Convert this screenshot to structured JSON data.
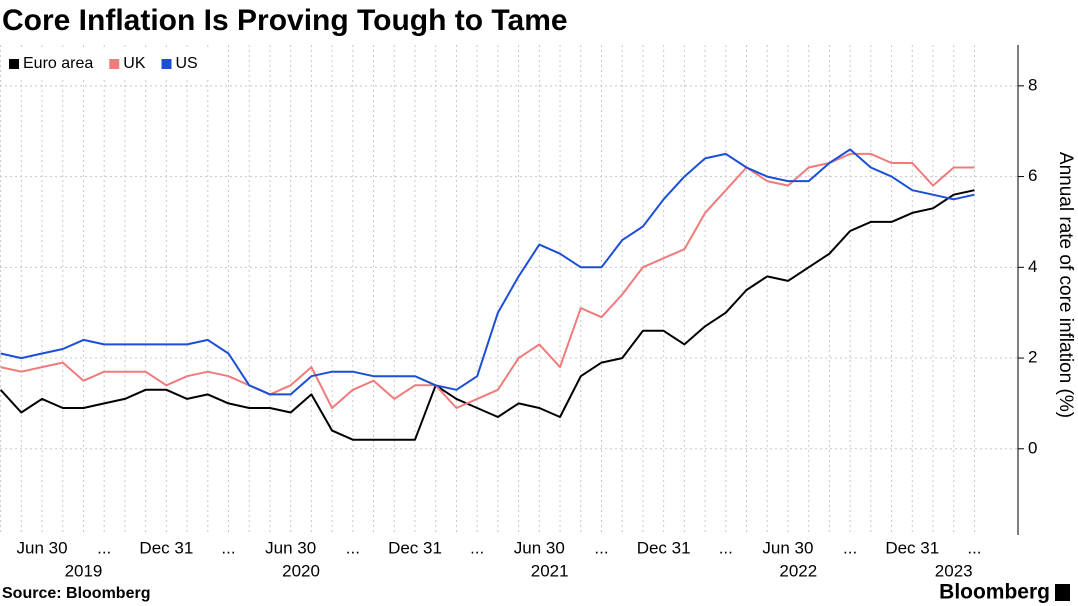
{
  "chart_data": {
    "type": "line",
    "title": "Core Inflation Is Proving Tough to Tame",
    "y_axis_label": "Annual rate of core inflation (%)",
    "source": "Source: Bloomberg",
    "brand": "Bloomberg",
    "x": [
      "2019-04",
      "2019-05",
      "2019-06",
      "2019-07",
      "2019-08",
      "2019-09",
      "2019-10",
      "2019-11",
      "2019-12",
      "2020-01",
      "2020-02",
      "2020-03",
      "2020-04",
      "2020-05",
      "2020-06",
      "2020-07",
      "2020-08",
      "2020-09",
      "2020-10",
      "2020-11",
      "2020-12",
      "2021-01",
      "2021-02",
      "2021-03",
      "2021-04",
      "2021-05",
      "2021-06",
      "2021-07",
      "2021-08",
      "2021-09",
      "2021-10",
      "2021-11",
      "2021-12",
      "2022-01",
      "2022-02",
      "2022-03",
      "2022-04",
      "2022-05",
      "2022-06",
      "2022-07",
      "2022-08",
      "2022-09",
      "2022-10",
      "2022-11",
      "2022-12",
      "2023-01",
      "2023-02",
      "2023-03"
    ],
    "xticks": [
      {
        "value": "2019-06",
        "label": "Jun 30"
      },
      {
        "value": "2019-09",
        "label": "..."
      },
      {
        "value": "2019-12",
        "label": "Dec 31"
      },
      {
        "value": "2020-03",
        "label": "..."
      },
      {
        "value": "2020-06",
        "label": "Jun 30"
      },
      {
        "value": "2020-09",
        "label": "..."
      },
      {
        "value": "2020-12",
        "label": "Dec 31"
      },
      {
        "value": "2021-03",
        "label": "..."
      },
      {
        "value": "2021-06",
        "label": "Jun 30"
      },
      {
        "value": "2021-09",
        "label": "..."
      },
      {
        "value": "2021-12",
        "label": "Dec 31"
      },
      {
        "value": "2022-03",
        "label": "..."
      },
      {
        "value": "2022-06",
        "label": "Jun 30"
      },
      {
        "value": "2022-09",
        "label": "..."
      },
      {
        "value": "2022-12",
        "label": "Dec 31"
      },
      {
        "value": "2023-03",
        "label": "..."
      }
    ],
    "year_labels": [
      "2019",
      "2020",
      "2021",
      "2022",
      "2023"
    ],
    "series": [
      {
        "name": "Euro area",
        "color": "#000000",
        "values": [
          1.3,
          0.8,
          1.1,
          0.9,
          0.9,
          1.0,
          1.1,
          1.3,
          1.3,
          1.1,
          1.2,
          1.0,
          0.9,
          0.9,
          0.8,
          1.2,
          0.4,
          0.2,
          0.2,
          0.2,
          0.2,
          1.4,
          1.1,
          0.9,
          0.7,
          1.0,
          0.9,
          0.7,
          1.6,
          1.9,
          2.0,
          2.6,
          2.6,
          2.3,
          2.7,
          3.0,
          3.5,
          3.8,
          3.7,
          4.0,
          4.3,
          4.8,
          5.0,
          5.0,
          5.2,
          5.3,
          5.6,
          5.7
        ]
      },
      {
        "name": "UK",
        "color": "#f07b7b",
        "values": [
          1.8,
          1.7,
          1.8,
          1.9,
          1.5,
          1.7,
          1.7,
          1.7,
          1.4,
          1.6,
          1.7,
          1.6,
          1.4,
          1.2,
          1.4,
          1.8,
          0.9,
          1.3,
          1.5,
          1.1,
          1.4,
          1.4,
          0.9,
          1.1,
          1.3,
          2.0,
          2.3,
          1.8,
          3.1,
          2.9,
          3.4,
          4.0,
          4.2,
          4.4,
          5.2,
          5.7,
          6.2,
          5.9,
          5.8,
          6.2,
          6.3,
          6.5,
          6.5,
          6.3,
          6.3,
          5.8,
          6.2,
          6.2
        ]
      },
      {
        "name": "US",
        "color": "#1a4fd6",
        "values": [
          2.1,
          2.0,
          2.1,
          2.2,
          2.4,
          2.3,
          2.3,
          2.3,
          2.3,
          2.3,
          2.4,
          2.1,
          1.4,
          1.2,
          1.2,
          1.6,
          1.7,
          1.7,
          1.6,
          1.6,
          1.6,
          1.4,
          1.3,
          1.6,
          3.0,
          3.8,
          4.5,
          4.3,
          4.0,
          4.0,
          4.6,
          4.9,
          5.5,
          6.0,
          6.4,
          6.5,
          6.2,
          6.0,
          5.9,
          5.9,
          6.3,
          6.6,
          6.2,
          6.0,
          5.7,
          5.6,
          5.5,
          5.6
        ]
      }
    ],
    "ylim": [
      -1.9,
      8.9
    ],
    "yticks": [
      0,
      2,
      4,
      6,
      8
    ],
    "grid": true,
    "legend": "top-left"
  }
}
